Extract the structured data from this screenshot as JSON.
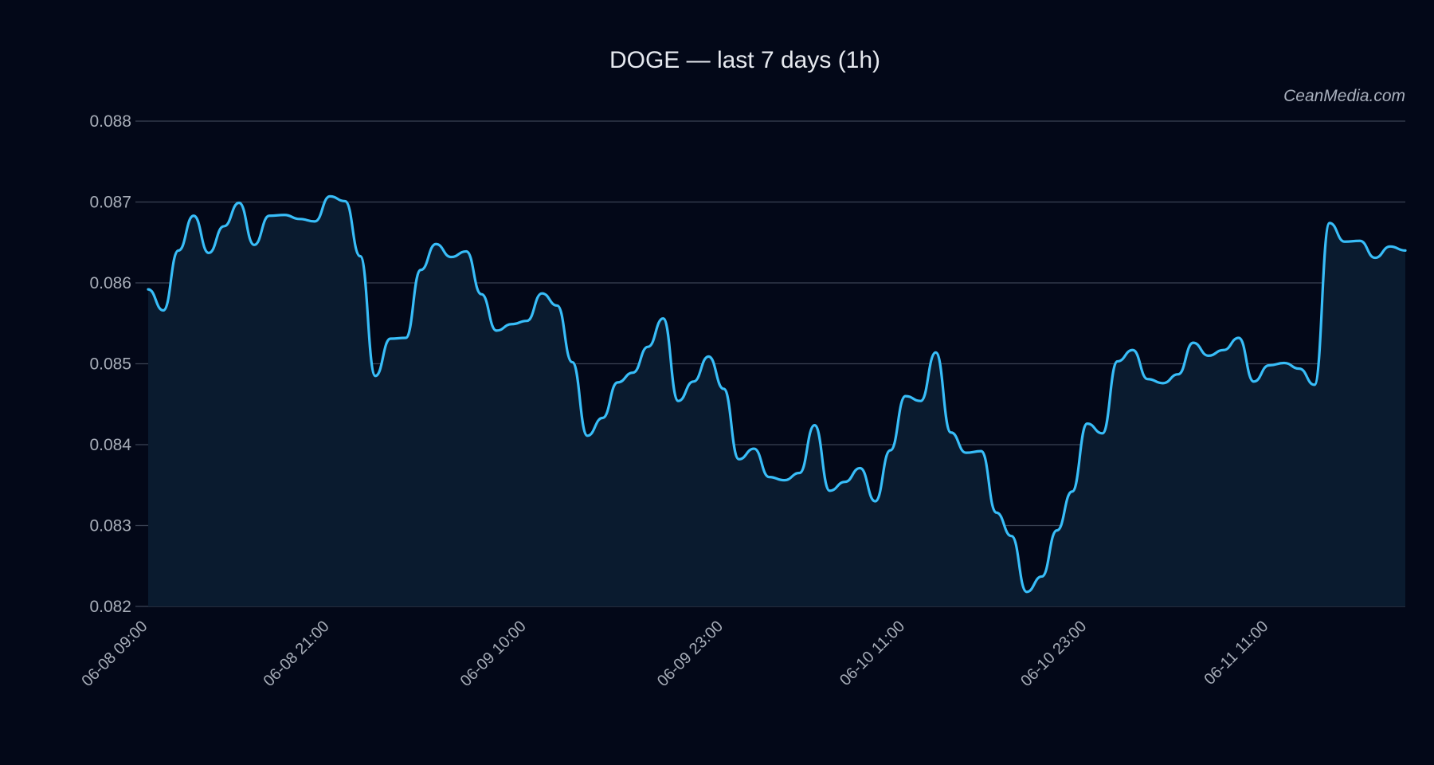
{
  "chart_data": {
    "type": "area",
    "title": "DOGE — last 7 days (1h)",
    "watermark": "CeanMedia.com",
    "xlabel": "",
    "ylabel": "",
    "ylim": [
      0.082,
      0.088
    ],
    "y_ticks": [
      0.082,
      0.083,
      0.084,
      0.085,
      0.086,
      0.087,
      0.088
    ],
    "y_tick_labels": [
      "0.082",
      "0.083",
      "0.084",
      "0.085",
      "0.086",
      "0.087",
      "0.088"
    ],
    "x_ticks": [
      {
        "index": 0,
        "label": "06-08 09:00"
      },
      {
        "index": 12,
        "label": "06-08 21:00"
      },
      {
        "index": 25,
        "label": "06-09 10:00"
      },
      {
        "index": 38,
        "label": "06-09 23:00"
      },
      {
        "index": 50,
        "label": "06-10 11:00"
      },
      {
        "index": 62,
        "label": "06-10 23:00"
      },
      {
        "index": 74,
        "label": "06-11 11:00"
      }
    ],
    "grid": true,
    "colors": {
      "background": "#030818",
      "line": "#38bdf8",
      "area": "#0a1b2f",
      "grid": "#3a4253"
    },
    "series": [
      {
        "values": [
          0.08592,
          0.08566,
          0.0864,
          0.08683,
          0.08637,
          0.0867,
          0.08699,
          0.08647,
          0.08683,
          0.08684,
          0.08679,
          0.08676,
          0.08707,
          0.08701,
          0.08633,
          0.08485,
          0.08531,
          0.08532,
          0.08616,
          0.08648,
          0.08632,
          0.08639,
          0.08586,
          0.08541,
          0.08549,
          0.08553,
          0.08587,
          0.08572,
          0.08502,
          0.08411,
          0.08433,
          0.08477,
          0.08489,
          0.08521,
          0.08556,
          0.08454,
          0.08478,
          0.08509,
          0.08469,
          0.08382,
          0.08395,
          0.0836,
          0.08356,
          0.08365,
          0.08424,
          0.08343,
          0.08354,
          0.08371,
          0.0833,
          0.08393,
          0.0846,
          0.08454,
          0.08514,
          0.08415,
          0.0839,
          0.08392,
          0.08316,
          0.08287,
          0.08218,
          0.08237,
          0.08294,
          0.08342,
          0.08426,
          0.08414,
          0.08503,
          0.08517,
          0.08481,
          0.08476,
          0.08487,
          0.08526,
          0.0851,
          0.08517,
          0.08532,
          0.08478,
          0.08498,
          0.08501,
          0.08494,
          0.08474,
          0.08674,
          0.08651,
          0.08652,
          0.08631,
          0.08645,
          0.0864
        ]
      }
    ]
  }
}
